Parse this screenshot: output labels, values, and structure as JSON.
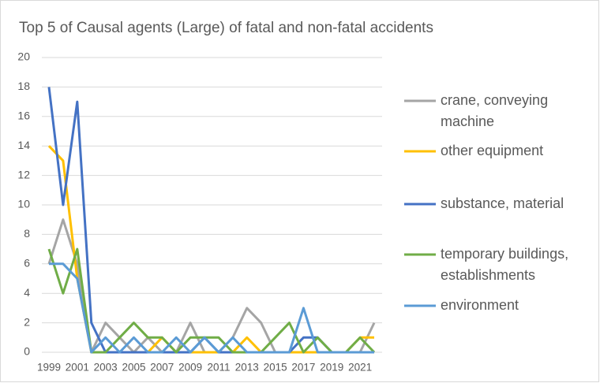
{
  "chart_data": {
    "type": "line",
    "title": "Top 5 of Causal agents (Large) of fatal and non-fatal accidents",
    "categories": [
      "1999",
      null,
      "2001",
      null,
      "2003",
      null,
      "2005",
      null,
      "2007",
      null,
      "2009",
      null,
      "2011",
      null,
      "2013",
      null,
      "2015",
      null,
      "2017",
      null,
      "2019",
      null,
      "2021",
      null
    ],
    "series": [
      {
        "name": "crane, conveying machine",
        "color": "#a5a5a5",
        "values": [
          6,
          9,
          6,
          0,
          2,
          1,
          0,
          1,
          0,
          0,
          2,
          0,
          0,
          1,
          3,
          2,
          0,
          0,
          0,
          0,
          0,
          0,
          0,
          2
        ]
      },
      {
        "name": "other equipment",
        "color": "#ffc000",
        "values": [
          14,
          13,
          5,
          0,
          0,
          0,
          0,
          0,
          1,
          0,
          0,
          0,
          0,
          0,
          1,
          0,
          0,
          0,
          0,
          0,
          0,
          0,
          1,
          1
        ]
      },
      {
        "name": "substance, material",
        "color": "#4472c4",
        "values": [
          18,
          10,
          17,
          2,
          0,
          0,
          0,
          0,
          0,
          0,
          0,
          1,
          0,
          0,
          0,
          0,
          0,
          0,
          1,
          1,
          0,
          0,
          0,
          0
        ]
      },
      {
        "name": "temporary buildings, establishments",
        "color": "#70ad47",
        "values": [
          7,
          4,
          7,
          0,
          0,
          1,
          2,
          1,
          1,
          0,
          1,
          1,
          1,
          0,
          0,
          0,
          1,
          2,
          0,
          1,
          0,
          0,
          1,
          0
        ]
      },
      {
        "name": "environment",
        "color": "#5b9bd5",
        "values": [
          6,
          6,
          5,
          0,
          1,
          0,
          1,
          0,
          0,
          1,
          0,
          1,
          0,
          1,
          0,
          0,
          0,
          0,
          3,
          0,
          0,
          0,
          0,
          0
        ]
      }
    ],
    "ylim": [
      0,
      20
    ],
    "yticks": [
      0,
      2,
      4,
      6,
      8,
      10,
      12,
      14,
      16,
      18,
      20
    ],
    "grid": true,
    "legend": "right"
  }
}
